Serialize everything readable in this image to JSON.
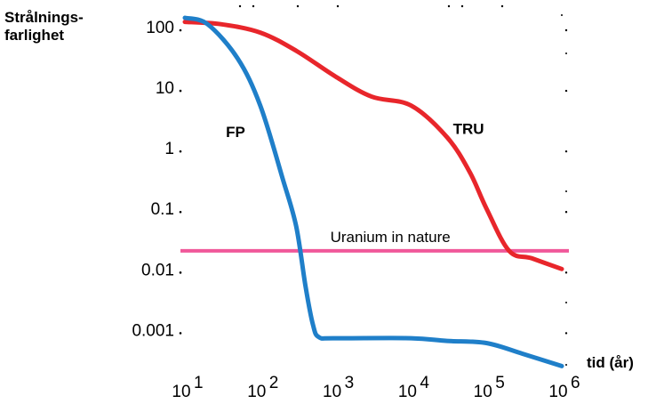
{
  "chart_data": {
    "type": "line",
    "ylabel": "Strålnings-farlighet",
    "ylabel_lines": [
      "Strålnings-",
      "farlighet"
    ],
    "xlabel": "tid (år)",
    "x_scale": "log",
    "y_scale": "log",
    "xlim": [
      10,
      1000000
    ],
    "ylim": [
      0.0002,
      150
    ],
    "x_ticks": [
      {
        "value": 10,
        "base": "10",
        "exp": "1"
      },
      {
        "value": 100,
        "base": "10",
        "exp": "2"
      },
      {
        "value": 1000,
        "base": "10",
        "exp": "3"
      },
      {
        "value": 10000,
        "base": "10",
        "exp": "4"
      },
      {
        "value": 100000,
        "base": "10",
        "exp": "5"
      },
      {
        "value": 1000000,
        "base": "10",
        "exp": "6"
      }
    ],
    "y_ticks": [
      {
        "value": 100,
        "label": "100"
      },
      {
        "value": 10,
        "label": "10"
      },
      {
        "value": 1,
        "label": "1"
      },
      {
        "value": 0.1,
        "label": "0.1"
      },
      {
        "value": 0.01,
        "label": "0.01"
      },
      {
        "value": 0.001,
        "label": "0.001"
      }
    ],
    "series": [
      {
        "name": "TRU",
        "color": "#e8262b",
        "x": [
          10,
          30,
          100,
          300,
          1000,
          3000,
          10000,
          30000,
          60000,
          100000,
          200000,
          400000,
          1000000
        ],
        "y": [
          120,
          110,
          80,
          40,
          15,
          7,
          5,
          1.5,
          0.4,
          0.1,
          0.02,
          0.015,
          0.01
        ]
      },
      {
        "name": "FP",
        "color": "#1f7fc9",
        "x": [
          10,
          20,
          50,
          100,
          200,
          300,
          400,
          500,
          600,
          1000,
          10000,
          30000,
          100000,
          300000,
          1000000
        ],
        "y": [
          140,
          110,
          30,
          5,
          0.3,
          0.05,
          0.005,
          0.0012,
          0.00075,
          0.00072,
          0.00072,
          0.00065,
          0.0006,
          0.0004,
          0.00025
        ]
      }
    ],
    "reference_line": {
      "label": "Uranium in nature",
      "value": 0.02,
      "color": "#f0589a"
    }
  }
}
